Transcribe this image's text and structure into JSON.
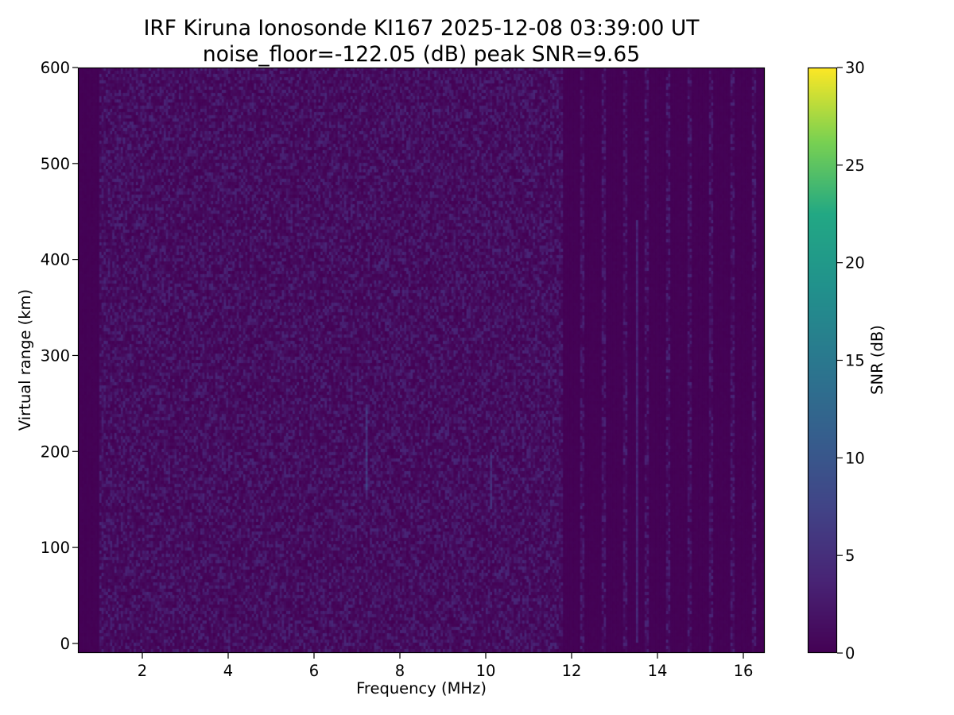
{
  "chart_data": {
    "type": "heatmap",
    "title": "IRF Kiruna Ionosonde KI167 2025-12-08 03:39:00  UT",
    "subtitle": "noise_floor=-122.05 (dB) peak SNR=9.65",
    "xlabel": "Frequency (MHz)",
    "ylabel": "Virtual range (km)",
    "xlim": [
      0.5,
      16.5
    ],
    "ylim": [
      -10,
      600
    ],
    "xticks": [
      "2",
      "4",
      "6",
      "8",
      "10",
      "12",
      "14",
      "16"
    ],
    "yticks": [
      "0",
      "100",
      "200",
      "300",
      "400",
      "500",
      "600"
    ],
    "colormap": "viridis",
    "colorbar": {
      "label": "SNR (dB)",
      "range": [
        0,
        30
      ],
      "ticks": [
        "0",
        "5",
        "10",
        "15",
        "20",
        "25",
        "30"
      ]
    },
    "noise_floor_db": -122.05,
    "peak_snr_db": 9.65,
    "features": {
      "low_noise_band_mhz": [
        0.5,
        1.0
      ],
      "sparse_sampling_above_mhz": 11.7,
      "enhanced_traces": [
        {
          "freq_mhz": 7.2,
          "range_km": [
            160,
            250
          ],
          "snr_db": 8
        },
        {
          "freq_mhz": 10.1,
          "range_km": [
            140,
            200
          ],
          "snr_db": 6
        },
        {
          "freq_mhz": 13.5,
          "range_km": [
            0,
            440
          ],
          "snr_db": 5
        }
      ]
    },
    "grid": false,
    "legend": "none"
  },
  "colors": {
    "background": "#ffffff",
    "axes": "#000000",
    "viridis_low": "#440154",
    "viridis_high": "#fde725"
  }
}
